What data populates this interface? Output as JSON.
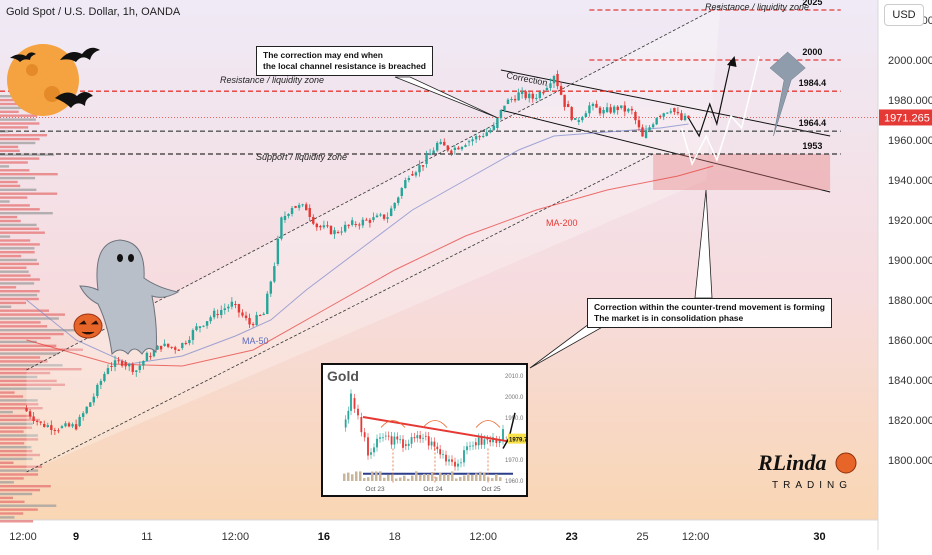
{
  "header": {
    "symbol_title": "Gold Spot / U.S. Dollar, 1h, OANDA",
    "currency_button": "USD"
  },
  "chart_data": {
    "type": "candlestick",
    "title": "Gold Spot / U.S. Dollar, 1h, OANDA",
    "ylim": [
      1790,
      2030
    ],
    "y_ticks": [
      "2020.000",
      "2000.000",
      "1980.000",
      "1960.000",
      "1940.000",
      "1920.000",
      "1900.000",
      "1880.000",
      "1860.000",
      "1840.000",
      "1820.000",
      "1800.000"
    ],
    "y_tick_values": [
      2020,
      2000,
      1980,
      1960,
      1940,
      1920,
      1900,
      1880,
      1860,
      1840,
      1820,
      1800
    ],
    "x_ticks": [
      {
        "label": "12:00",
        "day": 5.5,
        "bold": false
      },
      {
        "label": "9",
        "day": 7,
        "bold": true
      },
      {
        "label": "11",
        "day": 9,
        "bold": false
      },
      {
        "label": "12:00",
        "day": 11.5,
        "bold": false
      },
      {
        "label": "16",
        "day": 14,
        "bold": true
      },
      {
        "label": "18",
        "day": 16,
        "bold": false
      },
      {
        "label": "12:00",
        "day": 18.5,
        "bold": false
      },
      {
        "label": "23",
        "day": 21,
        "bold": true
      },
      {
        "label": "25",
        "day": 23,
        "bold": false
      },
      {
        "label": "12:00",
        "day": 24.5,
        "bold": false
      },
      {
        "label": "30",
        "day": 28,
        "bold": true
      }
    ],
    "current_price": {
      "label": "1971.265",
      "value": 1971.265
    },
    "price_path": [
      [
        5.5,
        1826
      ],
      [
        6.0,
        1818
      ],
      [
        6.5,
        1816
      ],
      [
        7.0,
        1817
      ],
      [
        7.5,
        1832
      ],
      [
        7.9,
        1847
      ],
      [
        8.3,
        1849
      ],
      [
        8.7,
        1845
      ],
      [
        9.0,
        1852
      ],
      [
        9.4,
        1857
      ],
      [
        9.9,
        1856
      ],
      [
        10.4,
        1866
      ],
      [
        10.9,
        1873
      ],
      [
        11.4,
        1878
      ],
      [
        11.9,
        1868
      ],
      [
        12.3,
        1873
      ],
      [
        12.6,
        1898
      ],
      [
        12.8,
        1920
      ],
      [
        13.1,
        1927
      ],
      [
        13.5,
        1926
      ],
      [
        13.8,
        1917
      ],
      [
        14.3,
        1914
      ],
      [
        14.8,
        1918
      ],
      [
        15.3,
        1920
      ],
      [
        15.8,
        1922
      ],
      [
        16.1,
        1932
      ],
      [
        16.4,
        1943
      ],
      [
        16.8,
        1948
      ],
      [
        17.2,
        1958
      ],
      [
        17.6,
        1955
      ],
      [
        18.0,
        1959
      ],
      [
        18.4,
        1962
      ],
      [
        18.8,
        1966
      ],
      [
        19.1,
        1978
      ],
      [
        19.5,
        1983
      ],
      [
        19.9,
        1981
      ],
      [
        20.2,
        1985
      ],
      [
        20.5,
        1993
      ],
      [
        20.8,
        1978
      ],
      [
        21.1,
        1969
      ],
      [
        21.5,
        1977
      ],
      [
        21.9,
        1974
      ],
      [
        22.3,
        1976
      ],
      [
        22.7,
        1974
      ],
      [
        23.0,
        1961
      ],
      [
        23.4,
        1972
      ],
      [
        23.8,
        1976
      ],
      [
        24.1,
        1970
      ],
      [
        24.3,
        1971
      ]
    ],
    "levels": [
      {
        "label": "2025",
        "value": 2025,
        "style": "dashed",
        "color": "#e53935"
      },
      {
        "label": "2000",
        "value": 2000,
        "style": "dashed",
        "color": "#e53935"
      },
      {
        "label": "1984.4",
        "value": 1984.4,
        "style": "dashed",
        "color": "#e53935"
      },
      {
        "label": "1964.4",
        "value": 1964.4,
        "style": "dashed",
        "color": "#555555"
      },
      {
        "label": "1953",
        "value": 1953,
        "style": "dashed",
        "color": "#333333"
      }
    ],
    "zone_labels": {
      "resistance_top": "Resistance / liquidity zone",
      "resistance_mid": "Resistance / liquidity zone",
      "support": "Support / liquidity zone",
      "correction": "Correction"
    },
    "ma_labels": {
      "ma200": "MA-200",
      "ma50": "MA-50"
    }
  },
  "callouts": {
    "top": {
      "line1": "The correction may end when",
      "line2": "the local channel resistance is breached"
    },
    "bottom": {
      "line1": "Correction within the counter-trend movement is forming",
      "line2": "The market is in consolidation phase"
    }
  },
  "inset": {
    "title": "Gold",
    "price_tag": "1979.7",
    "x_labels": [
      "Oct 23",
      "Oct 24",
      "Oct 25"
    ],
    "y_labels": [
      "2010.0",
      "2000.0",
      "1990.0",
      "1980.0",
      "1970.0",
      "1960.0"
    ]
  },
  "logo": {
    "text_main": "RLinda",
    "text_sub": "TRADING"
  },
  "colors": {
    "up": "#26a69a",
    "down": "#e53935",
    "bg_top": "#eeeaf5",
    "bg_bottom": "#f8d8b8"
  }
}
